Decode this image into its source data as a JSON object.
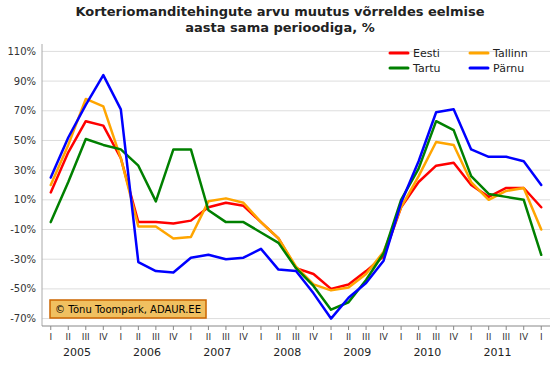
{
  "chart_data": {
    "type": "line",
    "title": "Korteriomanditehingute arvu muutus võrreldes eelmise\naasta sama perioodiga, %",
    "categories": [
      "I",
      "II",
      "III",
      "IV",
      "I",
      "II",
      "III",
      "IV",
      "I",
      "II",
      "III",
      "IV",
      "I",
      "II",
      "III",
      "IV",
      "I",
      "II",
      "III",
      "IV",
      "I",
      "II",
      "III",
      "IV",
      "I",
      "II",
      "III",
      "IV",
      "I"
    ],
    "series": [
      {
        "name": "Eesti",
        "color": "#FF0000",
        "values": [
          15,
          42,
          63,
          60,
          38,
          -5,
          -5,
          -6,
          -4,
          5,
          8,
          6,
          -5,
          -16,
          -36,
          -40,
          -50,
          -47,
          -38,
          -28,
          5,
          22,
          33,
          35,
          20,
          12,
          18,
          18,
          5
        ]
      },
      {
        "name": "Tallinn",
        "color": "#FFA500",
        "values": [
          20,
          47,
          78,
          73,
          38,
          -8,
          -8,
          -16,
          -15,
          9,
          11,
          8,
          -5,
          -16,
          -35,
          -47,
          -51,
          -49,
          -40,
          -25,
          5,
          26,
          49,
          47,
          22,
          10,
          16,
          18,
          -10
        ]
      },
      {
        "name": "Tartu",
        "color": "#008000",
        "values": [
          -5,
          22,
          51,
          47,
          44,
          33,
          9,
          44,
          44,
          3,
          -5,
          -5,
          -12,
          -19,
          -36,
          -48,
          -64,
          -59,
          -44,
          -26,
          10,
          31,
          63,
          57,
          26,
          14,
          12,
          10,
          -27
        ]
      },
      {
        "name": "Pärnu",
        "color": "#0000FF",
        "values": [
          25,
          52,
          74,
          94,
          71,
          -32,
          -38,
          -39,
          -29,
          -27,
          -30,
          -29,
          -23,
          -37,
          -38,
          -53,
          -70,
          -56,
          -46,
          -31,
          8,
          36,
          69,
          71,
          44,
          39,
          39,
          36,
          20
        ]
      }
    ],
    "ylim": [
      -75,
      115
    ],
    "yticks": [
      {
        "value": -70,
        "label": "-70%"
      },
      {
        "value": -50,
        "label": "-50%"
      },
      {
        "value": -30,
        "label": "-30%"
      },
      {
        "value": -10,
        "label": "-10%"
      },
      {
        "value": 10,
        "label": "10%"
      },
      {
        "value": 30,
        "label": "30%"
      },
      {
        "value": 50,
        "label": "50%"
      },
      {
        "value": 70,
        "label": "70%"
      },
      {
        "value": 90,
        "label": "90%"
      },
      {
        "value": 110,
        "label": "110%"
      }
    ],
    "grid": true,
    "legend": "upper right",
    "annotations": [
      {
        "text": "2005",
        "x": 1.5
      },
      {
        "text": "2006",
        "x": 5.5
      },
      {
        "text": "2007",
        "x": 9.5
      },
      {
        "text": "2008",
        "x": 13.5
      },
      {
        "text": "2009",
        "x": 17.5
      },
      {
        "text": "2010",
        "x": 21.5
      },
      {
        "text": "2011",
        "x": 25.5
      },
      {
        "text": "© Tõnu Toompark, ADAUR.EE"
      }
    ]
  }
}
